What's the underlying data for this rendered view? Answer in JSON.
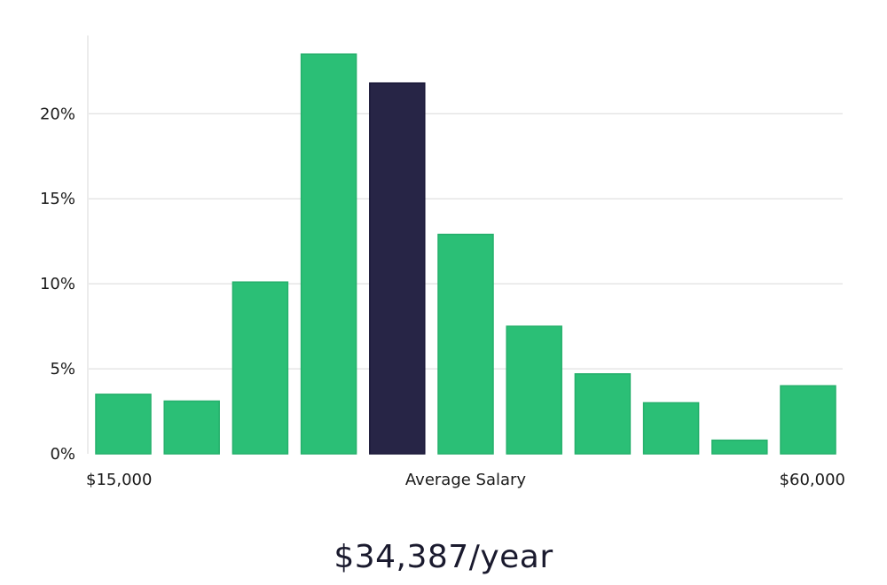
{
  "chart_data": {
    "type": "bar",
    "values": [
      3.5,
      3.1,
      10.1,
      23.5,
      21.8,
      12.9,
      7.5,
      4.7,
      3.0,
      0.8,
      4.0
    ],
    "highlight_index": 4,
    "ylim": [
      0,
      24.6
    ],
    "yticks": [
      0,
      5,
      10,
      15,
      20
    ],
    "ytick_suffix": "%",
    "x_labels": {
      "left": "$15,000",
      "center": "Average Salary",
      "right": "$60,000"
    },
    "grid": true,
    "colors": {
      "bar": "#2bbf76",
      "bar_stroke": "#25b06b",
      "highlight": "#272546",
      "highlight_stroke": "#1a1838"
    }
  },
  "summary": {
    "average_salary": "$34,387/year"
  }
}
